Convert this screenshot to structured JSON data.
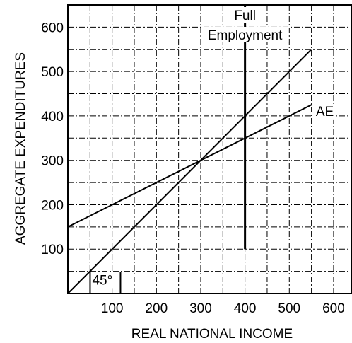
{
  "chart_data": {
    "type": "line",
    "xlabel": "REAL NATIONAL INCOME",
    "ylabel": "AGGREGATE EXPENDITURES",
    "xlim": [
      0,
      640
    ],
    "ylim": [
      0,
      650
    ],
    "x_ticks": [
      100,
      200,
      300,
      400,
      500,
      600
    ],
    "y_ticks": [
      100,
      200,
      300,
      400,
      500,
      600
    ],
    "grid": true,
    "series": [
      {
        "name": "45°",
        "x": [
          0,
          550
        ],
        "y": [
          0,
          550
        ]
      },
      {
        "name": "AE",
        "x": [
          0,
          550
        ],
        "y": [
          150,
          425
        ]
      }
    ],
    "annotations": [
      {
        "label_lines": [
          "Full",
          "Employment"
        ],
        "type": "vertical_line",
        "x": 400,
        "y_range": [
          100,
          650
        ]
      },
      {
        "label": "AE",
        "x": 560,
        "y": 400
      },
      {
        "label": "45°",
        "x": 55,
        "y": 20
      }
    ]
  }
}
